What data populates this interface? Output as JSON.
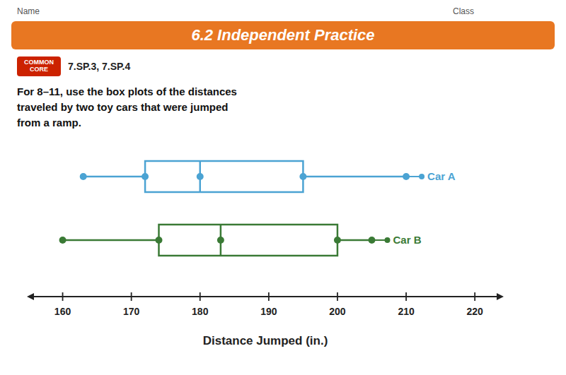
{
  "chart_data": {
    "type": "box",
    "title": "6.2 Independent Practice",
    "annotations": [
      "Name",
      "Class",
      "COMMON\nCORE",
      "7.SP.3, 7.SP.4",
      "For 8–11, use the box plots of the distances\ntraveled by two toy cars that were jumped\nfrom a ramp."
    ],
    "x_label": "Distance Jumped (in.)",
    "series": [
      {
        "name": "Car A",
        "color": "#4BA3D3",
        "min": 163,
        "q1": 172,
        "median": 180,
        "q3": 195,
        "max": 210
      },
      {
        "name": "Car B",
        "color": "#3A7A35",
        "min": 160,
        "q1": 174,
        "median": 183,
        "q3": 200,
        "max": 205
      }
    ],
    "xlim": [
      155,
      224
    ],
    "xticks": [
      160,
      170,
      180,
      190,
      200,
      210,
      220
    ]
  }
}
